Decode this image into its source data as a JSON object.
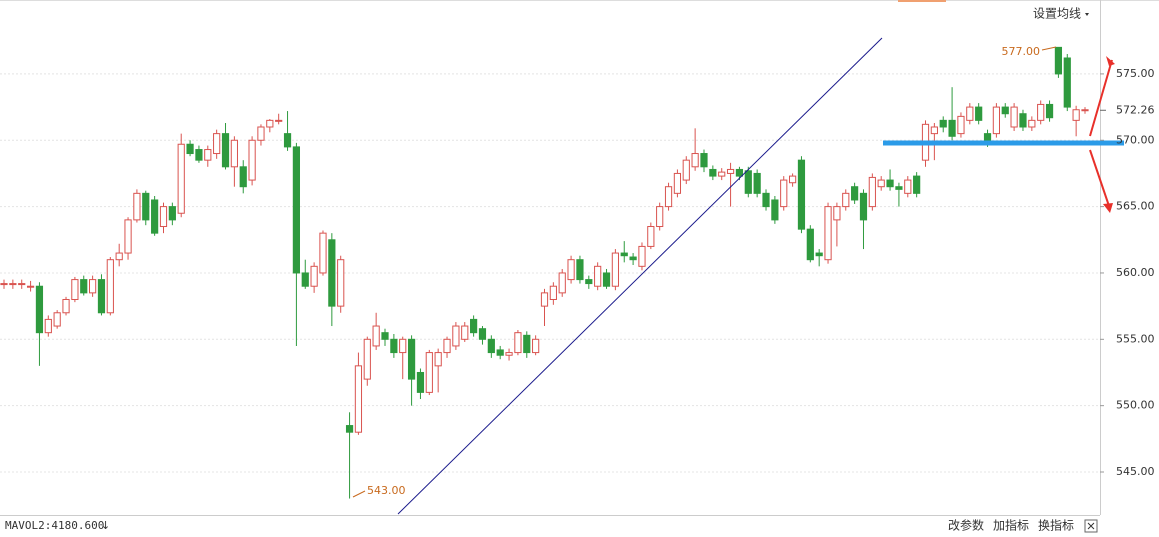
{
  "chart_data": {
    "type": "candlestick",
    "menu_label": "设置均线",
    "indicator_label": "MAVOL2:4180.600",
    "buttons": [
      "改参数",
      "加指标",
      "换指标"
    ],
    "ylim": [
      541.76,
      580.57
    ],
    "yticks": [
      {
        "value": 545,
        "label": "545.00"
      },
      {
        "value": 550,
        "label": "550.00"
      },
      {
        "value": 555,
        "label": "555.00"
      },
      {
        "value": 560,
        "label": "560.00"
      },
      {
        "value": 565,
        "label": "565.00"
      },
      {
        "value": 570,
        "label": "570.00"
      },
      {
        "value": 575,
        "label": "575.00"
      }
    ],
    "grid": true,
    "up_color": "#d9534f",
    "down_color": "#2e9a3e",
    "last_price": 572.26,
    "last_price_label": "572.26",
    "high_label": "577.00",
    "low_label": "543.00",
    "ohlc": [
      [
        559.2,
        559.5,
        558.8,
        559.2
      ],
      [
        559.2,
        559.5,
        558.8,
        559.2
      ],
      [
        559.2,
        559.5,
        558.8,
        559.2
      ],
      [
        559.0,
        559.4,
        558.6,
        559.0
      ],
      [
        559.0,
        559.3,
        553.0,
        555.5
      ],
      [
        555.5,
        556.8,
        555.2,
        556.5
      ],
      [
        556.0,
        557.2,
        555.8,
        557.0
      ],
      [
        557.0,
        558.2,
        556.8,
        558.0
      ],
      [
        558.0,
        559.7,
        557.8,
        559.5
      ],
      [
        559.5,
        559.8,
        558.3,
        558.5
      ],
      [
        558.5,
        559.8,
        558.2,
        559.5
      ],
      [
        559.5,
        559.9,
        556.8,
        557.0
      ],
      [
        557.0,
        561.2,
        556.8,
        561.0
      ],
      [
        561.0,
        562.2,
        560.5,
        561.5
      ],
      [
        561.5,
        564.2,
        561.0,
        564.0
      ],
      [
        564.0,
        566.3,
        563.8,
        566.0
      ],
      [
        566.0,
        566.2,
        563.6,
        564.0
      ],
      [
        565.5,
        565.8,
        562.8,
        563.0
      ],
      [
        563.5,
        565.3,
        563.0,
        565.0
      ],
      [
        565.0,
        565.3,
        563.6,
        564.0
      ],
      [
        564.5,
        570.5,
        564.2,
        569.7
      ],
      [
        569.7,
        570.0,
        568.8,
        569.0
      ],
      [
        569.3,
        569.6,
        568.3,
        568.5
      ],
      [
        568.5,
        569.6,
        568.0,
        569.3
      ],
      [
        569.0,
        570.8,
        568.6,
        570.5
      ],
      [
        570.5,
        571.3,
        567.8,
        568.0
      ],
      [
        568.0,
        570.3,
        566.5,
        570.0
      ],
      [
        568.0,
        568.5,
        566.0,
        566.5
      ],
      [
        567.0,
        570.3,
        566.6,
        570.0
      ],
      [
        570.0,
        571.2,
        569.6,
        571.0
      ],
      [
        571.0,
        571.6,
        570.6,
        571.5
      ],
      [
        571.5,
        572.0,
        571.2,
        571.5
      ],
      [
        570.5,
        572.2,
        569.2,
        569.5
      ],
      [
        569.5,
        569.8,
        554.5,
        560.0
      ],
      [
        560.0,
        561.0,
        558.8,
        559.0
      ],
      [
        559.0,
        560.8,
        558.5,
        560.5
      ],
      [
        560.0,
        563.2,
        559.8,
        563.0
      ],
      [
        562.5,
        563.0,
        556.0,
        557.5
      ],
      [
        557.5,
        561.3,
        557.0,
        561.0
      ],
      [
        548.5,
        549.5,
        543.0,
        548.0
      ],
      [
        548.0,
        554.0,
        547.8,
        553.0
      ],
      [
        552.0,
        555.2,
        551.5,
        555.0
      ],
      [
        554.5,
        557.0,
        554.2,
        556.0
      ],
      [
        555.5,
        555.8,
        554.5,
        555.0
      ],
      [
        555.0,
        555.4,
        553.6,
        554.0
      ],
      [
        554.0,
        555.2,
        552.0,
        555.0
      ],
      [
        555.0,
        555.3,
        550.0,
        552.0
      ],
      [
        552.5,
        552.8,
        550.5,
        551.0
      ],
      [
        551.0,
        554.2,
        550.8,
        554.0
      ],
      [
        553.0,
        554.3,
        551.0,
        554.0
      ],
      [
        554.0,
        555.2,
        553.6,
        555.0
      ],
      [
        554.5,
        556.3,
        554.2,
        556.0
      ],
      [
        555.0,
        556.3,
        554.8,
        556.0
      ],
      [
        556.5,
        556.8,
        555.2,
        555.5
      ],
      [
        555.8,
        556.0,
        554.6,
        555.0
      ],
      [
        555.0,
        555.3,
        553.6,
        554.0
      ],
      [
        554.2,
        554.5,
        553.5,
        553.8
      ],
      [
        553.8,
        554.3,
        553.4,
        554.0
      ],
      [
        554.0,
        555.7,
        553.8,
        555.5
      ],
      [
        555.3,
        555.6,
        553.6,
        554.0
      ],
      [
        554.0,
        555.3,
        553.8,
        555.0
      ],
      [
        557.5,
        558.8,
        556.0,
        558.5
      ],
      [
        558.0,
        559.3,
        557.6,
        559.0
      ],
      [
        558.5,
        560.3,
        558.2,
        560.0
      ],
      [
        559.5,
        561.3,
        559.2,
        561.0
      ],
      [
        561.0,
        561.3,
        559.2,
        559.5
      ],
      [
        559.5,
        559.8,
        558.8,
        559.2
      ],
      [
        559.0,
        560.8,
        558.7,
        560.5
      ],
      [
        560.0,
        560.3,
        558.8,
        559.0
      ],
      [
        559.0,
        561.8,
        558.7,
        561.5
      ],
      [
        561.5,
        562.4,
        560.8,
        561.3
      ],
      [
        561.2,
        561.5,
        560.6,
        561.0
      ],
      [
        560.5,
        562.3,
        560.2,
        562.0
      ],
      [
        562.0,
        563.8,
        561.8,
        563.5
      ],
      [
        563.5,
        565.3,
        563.2,
        565.0
      ],
      [
        565.0,
        566.8,
        564.7,
        566.5
      ],
      [
        566.0,
        567.8,
        565.7,
        567.5
      ],
      [
        567.0,
        568.8,
        566.7,
        568.5
      ],
      [
        568.0,
        570.9,
        567.7,
        569.0
      ],
      [
        569.0,
        569.3,
        567.6,
        568.0
      ],
      [
        567.8,
        568.1,
        567.0,
        567.3
      ],
      [
        567.3,
        567.9,
        567.0,
        567.6
      ],
      [
        567.5,
        568.3,
        565.0,
        567.8
      ],
      [
        567.8,
        568.0,
        567.0,
        567.3
      ],
      [
        567.7,
        568.0,
        565.7,
        566.0
      ],
      [
        567.5,
        567.8,
        565.7,
        566.0
      ],
      [
        566.0,
        566.3,
        564.7,
        565.0
      ],
      [
        565.5,
        565.8,
        563.7,
        564.0
      ],
      [
        565.0,
        567.3,
        564.7,
        567.0
      ],
      [
        566.8,
        567.5,
        566.5,
        567.3
      ],
      [
        568.5,
        568.8,
        563.0,
        563.3
      ],
      [
        563.3,
        563.6,
        560.8,
        561.0
      ],
      [
        561.5,
        561.8,
        560.5,
        561.3
      ],
      [
        561.0,
        565.3,
        560.7,
        565.0
      ],
      [
        564.0,
        565.3,
        562.0,
        565.0
      ],
      [
        565.0,
        566.3,
        564.7,
        566.0
      ],
      [
        566.5,
        566.8,
        565.2,
        565.5
      ],
      [
        566.0,
        566.3,
        561.8,
        564.0
      ],
      [
        565.0,
        567.5,
        564.7,
        567.2
      ],
      [
        566.5,
        567.3,
        566.2,
        567.0
      ],
      [
        567.0,
        567.8,
        566.2,
        566.5
      ],
      [
        566.5,
        566.8,
        565.0,
        566.3
      ],
      [
        566.0,
        567.3,
        565.7,
        567.0
      ],
      [
        567.3,
        567.6,
        565.7,
        566.0
      ],
      [
        568.5,
        571.5,
        568.0,
        571.2
      ],
      [
        570.5,
        571.3,
        568.5,
        571.0
      ],
      [
        571.5,
        571.8,
        570.6,
        571.0
      ],
      [
        571.5,
        574.0,
        570.0,
        570.3
      ],
      [
        570.5,
        572.1,
        570.2,
        571.8
      ],
      [
        571.5,
        572.8,
        571.2,
        572.5
      ],
      [
        572.5,
        572.8,
        571.2,
        571.5
      ],
      [
        570.5,
        570.8,
        569.5,
        570.0
      ],
      [
        570.5,
        572.8,
        570.2,
        572.5
      ],
      [
        572.5,
        572.8,
        571.7,
        572.0
      ],
      [
        571.0,
        572.8,
        570.7,
        572.5
      ],
      [
        572.0,
        572.3,
        570.7,
        571.0
      ],
      [
        571.0,
        571.8,
        570.7,
        571.5
      ],
      [
        571.5,
        573.0,
        571.2,
        572.7
      ],
      [
        572.7,
        573.0,
        571.4,
        571.7
      ],
      [
        577.0,
        577.0,
        574.7,
        575.0
      ],
      [
        576.2,
        576.5,
        572.2,
        572.5
      ],
      [
        571.5,
        572.6,
        570.3,
        572.3
      ],
      [
        572.3,
        572.5,
        572.0,
        572.3
      ]
    ]
  }
}
